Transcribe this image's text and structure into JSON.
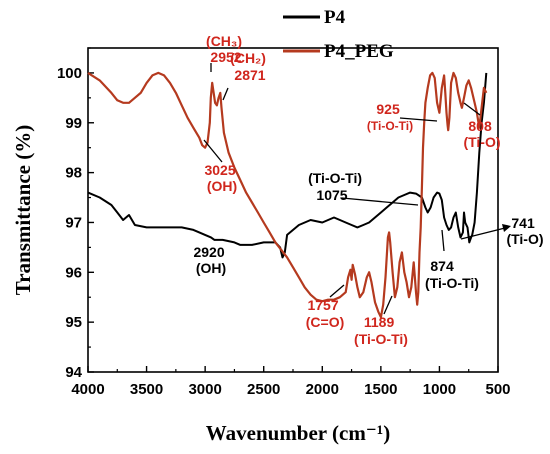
{
  "chart_data": {
    "type": "line",
    "title": "",
    "xlabel": "Wavenumber (cm⁻¹)",
    "ylabel": "Transmittance (%)",
    "xlim": [
      4000,
      500
    ],
    "ylim": [
      94,
      100.5
    ],
    "x_reversed": true,
    "grid": false,
    "legend_position": "top-right",
    "x_ticks": [
      "4000",
      "3500",
      "3000",
      "2500",
      "2000",
      "1500",
      "1000",
      "500"
    ],
    "y_ticks": [
      "94",
      "95",
      "96",
      "97",
      "98",
      "99",
      "100"
    ],
    "series": [
      {
        "name": "P4",
        "color": "#000000",
        "points": [
          [
            4000,
            97.6
          ],
          [
            3900,
            97.5
          ],
          [
            3800,
            97.35
          ],
          [
            3750,
            97.2
          ],
          [
            3700,
            97.05
          ],
          [
            3650,
            97.15
          ],
          [
            3600,
            96.95
          ],
          [
            3500,
            96.9
          ],
          [
            3400,
            96.9
          ],
          [
            3300,
            96.9
          ],
          [
            3200,
            96.9
          ],
          [
            3100,
            96.85
          ],
          [
            3050,
            96.8
          ],
          [
            3000,
            96.75
          ],
          [
            2950,
            96.7
          ],
          [
            2920,
            96.65
          ],
          [
            2850,
            96.65
          ],
          [
            2750,
            96.6
          ],
          [
            2700,
            96.55
          ],
          [
            2600,
            96.55
          ],
          [
            2500,
            96.6
          ],
          [
            2400,
            96.6
          ],
          [
            2360,
            96.5
          ],
          [
            2340,
            96.3
          ],
          [
            2320,
            96.4
          ],
          [
            2300,
            96.75
          ],
          [
            2200,
            96.95
          ],
          [
            2100,
            97.05
          ],
          [
            2000,
            97.0
          ],
          [
            1950,
            97.05
          ],
          [
            1900,
            97.1
          ],
          [
            1850,
            97.05
          ],
          [
            1800,
            97.0
          ],
          [
            1750,
            96.95
          ],
          [
            1700,
            96.9
          ],
          [
            1650,
            96.95
          ],
          [
            1600,
            97.0
          ],
          [
            1550,
            97.1
          ],
          [
            1500,
            97.2
          ],
          [
            1450,
            97.3
          ],
          [
            1400,
            97.4
          ],
          [
            1350,
            97.5
          ],
          [
            1300,
            97.55
          ],
          [
            1250,
            97.6
          ],
          [
            1200,
            97.58
          ],
          [
            1150,
            97.5
          ],
          [
            1120,
            97.3
          ],
          [
            1100,
            97.2
          ],
          [
            1075,
            97.3
          ],
          [
            1050,
            97.5
          ],
          [
            1020,
            97.6
          ],
          [
            1000,
            97.58
          ],
          [
            980,
            97.45
          ],
          [
            960,
            97.1
          ],
          [
            940,
            96.95
          ],
          [
            920,
            96.85
          ],
          [
            900,
            96.9
          ],
          [
            880,
            97.1
          ],
          [
            860,
            97.2
          ],
          [
            840,
            96.9
          ],
          [
            820,
            96.7
          ],
          [
            800,
            96.8
          ],
          [
            790,
            97.2
          ],
          [
            780,
            97.0
          ],
          [
            760,
            96.9
          ],
          [
            745,
            96.6
          ],
          [
            730,
            96.7
          ],
          [
            720,
            96.75
          ],
          [
            700,
            97.0
          ],
          [
            680,
            97.6
          ],
          [
            660,
            98.4
          ],
          [
            640,
            99.0
          ],
          [
            620,
            99.4
          ],
          [
            600,
            100.0
          ]
        ]
      },
      {
        "name": "P4_PEG",
        "color": "#b53a1f",
        "points": [
          [
            4000,
            100.0
          ],
          [
            3900,
            99.85
          ],
          [
            3800,
            99.6
          ],
          [
            3750,
            99.45
          ],
          [
            3700,
            99.4
          ],
          [
            3650,
            99.4
          ],
          [
            3600,
            99.5
          ],
          [
            3550,
            99.6
          ],
          [
            3500,
            99.8
          ],
          [
            3450,
            99.95
          ],
          [
            3400,
            100.0
          ],
          [
            3350,
            99.95
          ],
          [
            3300,
            99.8
          ],
          [
            3250,
            99.6
          ],
          [
            3200,
            99.35
          ],
          [
            3150,
            99.1
          ],
          [
            3100,
            98.9
          ],
          [
            3050,
            98.7
          ],
          [
            3025,
            98.55
          ],
          [
            3000,
            98.5
          ],
          [
            2980,
            98.6
          ],
          [
            2960,
            99.0
          ],
          [
            2952,
            99.5
          ],
          [
            2940,
            99.8
          ],
          [
            2930,
            99.65
          ],
          [
            2915,
            99.4
          ],
          [
            2900,
            99.35
          ],
          [
            2885,
            99.5
          ],
          [
            2871,
            99.6
          ],
          [
            2860,
            99.3
          ],
          [
            2840,
            98.8
          ],
          [
            2800,
            98.4
          ],
          [
            2750,
            98.1
          ],
          [
            2700,
            97.85
          ],
          [
            2650,
            97.6
          ],
          [
            2600,
            97.4
          ],
          [
            2550,
            97.2
          ],
          [
            2500,
            97.0
          ],
          [
            2450,
            96.8
          ],
          [
            2400,
            96.6
          ],
          [
            2350,
            96.45
          ],
          [
            2300,
            96.3
          ],
          [
            2250,
            96.1
          ],
          [
            2200,
            95.9
          ],
          [
            2150,
            95.7
          ],
          [
            2100,
            95.55
          ],
          [
            2050,
            95.45
          ],
          [
            2000,
            95.42
          ],
          [
            1950,
            95.45
          ],
          [
            1900,
            95.45
          ],
          [
            1850,
            95.5
          ],
          [
            1800,
            95.6
          ],
          [
            1780,
            95.9
          ],
          [
            1760,
            96.05
          ],
          [
            1750,
            95.85
          ],
          [
            1740,
            96.15
          ],
          [
            1720,
            95.95
          ],
          [
            1700,
            95.7
          ],
          [
            1680,
            95.5
          ],
          [
            1650,
            95.6
          ],
          [
            1620,
            95.9
          ],
          [
            1600,
            96.0
          ],
          [
            1580,
            95.8
          ],
          [
            1550,
            95.4
          ],
          [
            1520,
            95.2
          ],
          [
            1500,
            95.1
          ],
          [
            1480,
            95.35
          ],
          [
            1460,
            95.9
          ],
          [
            1440,
            96.7
          ],
          [
            1430,
            96.8
          ],
          [
            1420,
            96.6
          ],
          [
            1400,
            96.0
          ],
          [
            1380,
            95.5
          ],
          [
            1360,
            95.7
          ],
          [
            1340,
            96.2
          ],
          [
            1320,
            96.4
          ],
          [
            1300,
            96.0
          ],
          [
            1280,
            95.8
          ],
          [
            1260,
            95.5
          ],
          [
            1240,
            95.7
          ],
          [
            1220,
            96.2
          ],
          [
            1200,
            95.6
          ],
          [
            1190,
            95.35
          ],
          [
            1180,
            95.6
          ],
          [
            1170,
            96.4
          ],
          [
            1160,
            96.9
          ],
          [
            1150,
            97.7
          ],
          [
            1140,
            98.5
          ],
          [
            1130,
            99.0
          ],
          [
            1120,
            99.4
          ],
          [
            1100,
            99.7
          ],
          [
            1080,
            99.95
          ],
          [
            1060,
            100.0
          ],
          [
            1040,
            99.9
          ],
          [
            1020,
            99.4
          ],
          [
            1000,
            99.2
          ],
          [
            980,
            99.7
          ],
          [
            960,
            99.95
          ],
          [
            950,
            99.6
          ],
          [
            940,
            99.2
          ],
          [
            930,
            98.95
          ],
          [
            925,
            98.85
          ],
          [
            915,
            99.1
          ],
          [
            900,
            99.8
          ],
          [
            880,
            100.0
          ],
          [
            860,
            99.9
          ],
          [
            840,
            99.6
          ],
          [
            820,
            99.4
          ],
          [
            808,
            99.3
          ],
          [
            790,
            99.5
          ],
          [
            770,
            99.75
          ],
          [
            750,
            99.85
          ],
          [
            730,
            99.7
          ],
          [
            700,
            99.4
          ],
          [
            680,
            99.2
          ],
          [
            660,
            98.9
          ],
          [
            640,
            99.3
          ],
          [
            620,
            99.7
          ],
          [
            600,
            99.6
          ]
        ]
      }
    ],
    "annotations": [
      {
        "lines": [
          "(CH₃)",
          "2952"
        ],
        "color": "#d0261d"
      },
      {
        "lines": [
          "(CH₂)",
          "2871"
        ],
        "color": "#d0261d"
      },
      {
        "lines": [
          "3025",
          "(OH)"
        ],
        "color": "#d0261d"
      },
      {
        "lines": [
          "925",
          "(Ti-O-Ti)"
        ],
        "color": "#d0261d"
      },
      {
        "lines": [
          "808",
          "(Ti-O)"
        ],
        "color": "#d0261d"
      },
      {
        "lines": [
          "(Ti-O-Ti)",
          "1075"
        ],
        "color": "#000000"
      },
      {
        "lines": [
          "741",
          "(Ti-O)"
        ],
        "color": "#000000"
      },
      {
        "lines": [
          "874",
          "(Ti-O-Ti)"
        ],
        "color": "#000000"
      },
      {
        "lines": [
          "2920",
          "(OH)"
        ],
        "color": "#000000"
      },
      {
        "lines": [
          "1757",
          "(C=O)"
        ],
        "color": "#d0261d"
      },
      {
        "lines": [
          "1189",
          "(Ti-O-Ti)"
        ],
        "color": "#d0261d"
      }
    ]
  }
}
